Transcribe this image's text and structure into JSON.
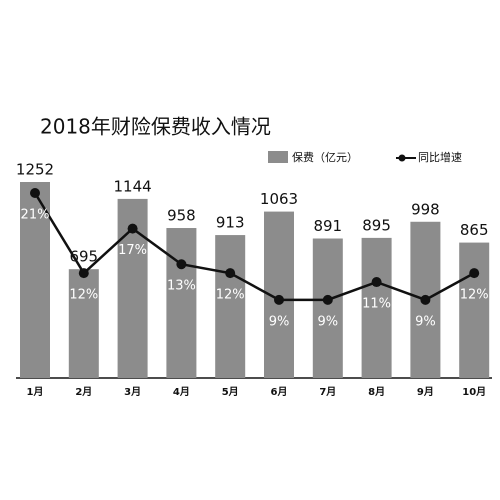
{
  "chart_data": {
    "type": "bar-line",
    "title": "2018年财险保费收入情况",
    "categories": [
      "1月",
      "2月",
      "3月",
      "4月",
      "5月",
      "6月",
      "7月",
      "8月",
      "9月",
      "10月"
    ],
    "series": [
      {
        "name": "保费（亿元）",
        "type": "bar",
        "color": "#8c8c8c",
        "values": [
          1252,
          695,
          1144,
          958,
          913,
          1063,
          891,
          895,
          998,
          865
        ]
      },
      {
        "name": "同比增速",
        "type": "line",
        "color": "#111111",
        "values": [
          21,
          12,
          17,
          13,
          12,
          9,
          9,
          11,
          9,
          12
        ],
        "value_labels": [
          "21%",
          "12%",
          "17%",
          "13%",
          "12%",
          "9%",
          "9%",
          "11%",
          "9%",
          "12%"
        ]
      }
    ]
  }
}
